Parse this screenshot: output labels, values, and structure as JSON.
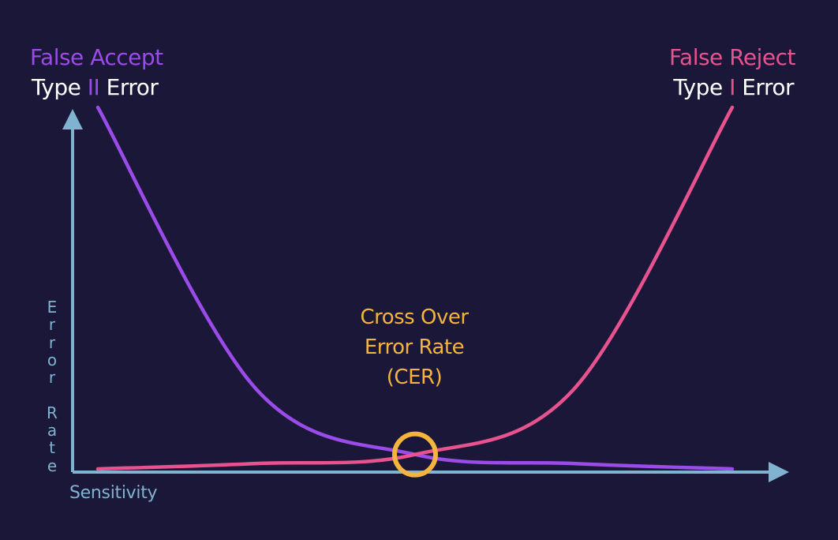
{
  "chart_data": {
    "type": "line",
    "title": "",
    "xlabel": "Sensitivity",
    "ylabel": "Error Rate",
    "series": [
      {
        "name": "False Accept",
        "subtitle": [
          "Type ",
          "II",
          " Error"
        ],
        "color": "#9a4be8",
        "x": [
          0,
          0.25,
          0.5,
          0.75,
          1
        ],
        "y": [
          1,
          0.22,
          0.04,
          0.015,
          0
        ]
      },
      {
        "name": "False Reject",
        "subtitle": [
          "Type ",
          "I",
          " Error"
        ],
        "color": "#e8528e",
        "x": [
          0,
          0.25,
          0.5,
          0.75,
          1
        ],
        "y": [
          0,
          0.015,
          0.04,
          0.22,
          1
        ]
      }
    ],
    "annotation": {
      "lines": [
        "Cross Over",
        "Error Rate",
        "(CER)"
      ],
      "color": "#f4b43d",
      "x": 0.5,
      "y": 0.04
    },
    "axis_color": "#7fb3d0",
    "text_color": "#ffffff",
    "xlim": [
      0,
      1
    ],
    "ylim": [
      0,
      1
    ]
  }
}
